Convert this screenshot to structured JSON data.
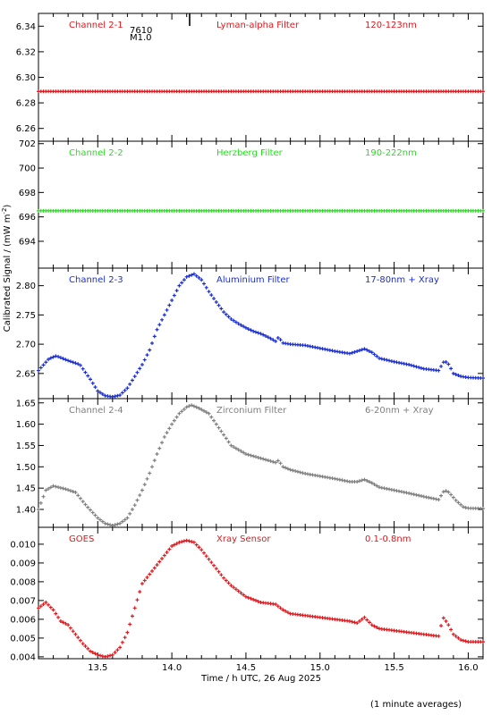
{
  "chart_data": {
    "type": "scatter",
    "xlabel": "Time / h UTC, 26 Aug 2025",
    "ylabel": "Calibrated Signal / (mW m",
    "ylabel_sup": "-2",
    "ylabel_end": ")",
    "footnote": "(1 minute averages)",
    "xlim": [
      13.1,
      16.1
    ],
    "x_ticks": [
      "13.5",
      "14.0",
      "14.5",
      "15.0",
      "15.5",
      "16.0"
    ],
    "x_tick_values": [
      13.5,
      14.0,
      14.5,
      15.0,
      15.5,
      16.0
    ],
    "panels": [
      {
        "name": "Channel 2-1",
        "filter": "Lyman-alpha Filter",
        "band": "120-123nm",
        "color": "#e0161b",
        "ylim": [
          6.25,
          6.35
        ],
        "y_ticks": [
          "6.34",
          "6.32",
          "6.30",
          "6.28",
          "6.26"
        ],
        "y_tick_values": [
          6.34,
          6.32,
          6.3,
          6.28,
          6.26
        ],
        "marker_x": 14.12,
        "marker_labels": [
          "7610",
          "M1.0"
        ],
        "series": {
          "x": [
            13.1,
            13.5,
            14.0,
            14.5,
            15.0,
            15.5,
            16.1
          ],
          "y": [
            6.289,
            6.289,
            6.289,
            6.289,
            6.289,
            6.289,
            6.289
          ]
        }
      },
      {
        "name": "Channel 2-2",
        "filter": "Herzberg Filter",
        "band": "190-222nm",
        "color": "#22e01a",
        "ylim": [
          691.8,
          702.2
        ],
        "y_ticks": [
          "702",
          "700",
          "698",
          "696",
          "694"
        ],
        "y_tick_values": [
          702,
          700,
          698,
          696,
          694
        ],
        "series": {
          "x": [
            13.1,
            13.5,
            14.0,
            14.5,
            15.0,
            15.5,
            16.1
          ],
          "y": [
            696.5,
            696.5,
            696.5,
            696.5,
            696.5,
            696.5,
            696.5
          ]
        }
      },
      {
        "name": "Channel 2-3",
        "filter": "Aluminium Filter",
        "band": "17-80nm + Xray",
        "color": "#1a2ecf",
        "ylim": [
          2.607,
          2.83
        ],
        "y_ticks": [
          "2.80",
          "2.75",
          "2.70",
          "2.65"
        ],
        "y_tick_values": [
          2.8,
          2.75,
          2.7,
          2.65
        ],
        "series": {
          "x": [
            13.1,
            13.17,
            13.22,
            13.3,
            13.38,
            13.45,
            13.5,
            13.55,
            13.6,
            13.65,
            13.7,
            13.75,
            13.8,
            13.85,
            13.9,
            13.95,
            14.0,
            14.05,
            14.1,
            14.15,
            14.2,
            14.25,
            14.3,
            14.35,
            14.4,
            14.45,
            14.5,
            14.55,
            14.6,
            14.65,
            14.7,
            14.72,
            14.75,
            14.8,
            14.9,
            15.0,
            15.1,
            15.2,
            15.25,
            15.3,
            15.35,
            15.4,
            15.5,
            15.6,
            15.7,
            15.8,
            15.84,
            15.87,
            15.9,
            15.95,
            16.0,
            16.1
          ],
          "y": [
            2.655,
            2.675,
            2.68,
            2.672,
            2.665,
            2.64,
            2.62,
            2.612,
            2.61,
            2.613,
            2.625,
            2.645,
            2.665,
            2.69,
            2.725,
            2.75,
            2.775,
            2.8,
            2.815,
            2.82,
            2.81,
            2.79,
            2.772,
            2.755,
            2.743,
            2.735,
            2.728,
            2.722,
            2.718,
            2.712,
            2.705,
            2.712,
            2.702,
            2.7,
            2.698,
            2.693,
            2.688,
            2.684,
            2.688,
            2.692,
            2.686,
            2.676,
            2.67,
            2.665,
            2.658,
            2.655,
            2.672,
            2.665,
            2.65,
            2.645,
            2.643,
            2.642
          ]
        }
      },
      {
        "name": "Channel 2-4",
        "filter": "Zirconium Filter",
        "band": "6-20nm + Xray",
        "color": "#7f7f7f",
        "ylim": [
          1.358,
          1.66
        ],
        "y_ticks": [
          "1.65",
          "1.60",
          "1.55",
          "1.50",
          "1.45",
          "1.40"
        ],
        "y_tick_values": [
          1.65,
          1.6,
          1.55,
          1.5,
          1.45,
          1.4
        ],
        "series": {
          "x": [
            13.1,
            13.15,
            13.2,
            13.28,
            13.35,
            13.42,
            13.5,
            13.55,
            13.6,
            13.65,
            13.7,
            13.75,
            13.8,
            13.85,
            13.9,
            13.95,
            14.0,
            14.05,
            14.1,
            14.13,
            14.18,
            14.25,
            14.3,
            14.35,
            14.4,
            14.45,
            14.5,
            14.6,
            14.7,
            14.72,
            14.75,
            14.8,
            14.9,
            15.0,
            15.1,
            15.2,
            15.25,
            15.3,
            15.35,
            15.4,
            15.5,
            15.6,
            15.7,
            15.8,
            15.84,
            15.87,
            15.92,
            15.97,
            16.0,
            16.1
          ],
          "y": [
            1.4,
            1.445,
            1.455,
            1.448,
            1.44,
            1.41,
            1.38,
            1.367,
            1.362,
            1.367,
            1.38,
            1.41,
            1.445,
            1.485,
            1.53,
            1.57,
            1.6,
            1.625,
            1.64,
            1.645,
            1.638,
            1.625,
            1.6,
            1.575,
            1.55,
            1.54,
            1.53,
            1.52,
            1.51,
            1.515,
            1.5,
            1.493,
            1.484,
            1.478,
            1.472,
            1.465,
            1.465,
            1.47,
            1.462,
            1.452,
            1.445,
            1.438,
            1.43,
            1.423,
            1.445,
            1.44,
            1.42,
            1.405,
            1.403,
            1.402
          ]
        }
      },
      {
        "name": "GOES",
        "filter": "Xray Sensor",
        "band": "0.1-0.8nm",
        "color": "#e0161b",
        "ylim": [
          0.0039,
          0.0109
        ],
        "y_ticks": [
          "0.010",
          "0.009",
          "0.008",
          "0.007",
          "0.006",
          "0.005",
          "0.004"
        ],
        "y_tick_values": [
          0.01,
          0.009,
          0.008,
          0.007,
          0.006,
          0.005,
          0.004
        ],
        "series": {
          "x": [
            13.1,
            13.15,
            13.2,
            13.25,
            13.3,
            13.35,
            13.4,
            13.45,
            13.5,
            13.55,
            13.6,
            13.65,
            13.7,
            13.75,
            13.8,
            13.85,
            13.9,
            13.95,
            14.0,
            14.05,
            14.1,
            14.15,
            14.2,
            14.25,
            14.3,
            14.35,
            14.4,
            14.45,
            14.5,
            14.6,
            14.7,
            14.75,
            14.8,
            14.9,
            15.0,
            15.1,
            15.2,
            15.25,
            15.3,
            15.35,
            15.4,
            15.5,
            15.6,
            15.7,
            15.8,
            15.83,
            15.86,
            15.9,
            15.95,
            16.0,
            16.1
          ],
          "y": [
            0.0066,
            0.0069,
            0.0065,
            0.0059,
            0.0057,
            0.0052,
            0.0047,
            0.0043,
            0.0041,
            0.004,
            0.0041,
            0.0045,
            0.0053,
            0.0066,
            0.0079,
            0.0084,
            0.0089,
            0.0094,
            0.0099,
            0.0101,
            0.0102,
            0.0101,
            0.0097,
            0.0092,
            0.0087,
            0.0082,
            0.0078,
            0.0075,
            0.0072,
            0.0069,
            0.0068,
            0.0065,
            0.0063,
            0.0062,
            0.0061,
            0.006,
            0.0059,
            0.0058,
            0.0061,
            0.0057,
            0.0055,
            0.0054,
            0.0053,
            0.0052,
            0.0051,
            0.0061,
            0.0058,
            0.0052,
            0.0049,
            0.0048,
            0.0048
          ]
        }
      }
    ]
  }
}
